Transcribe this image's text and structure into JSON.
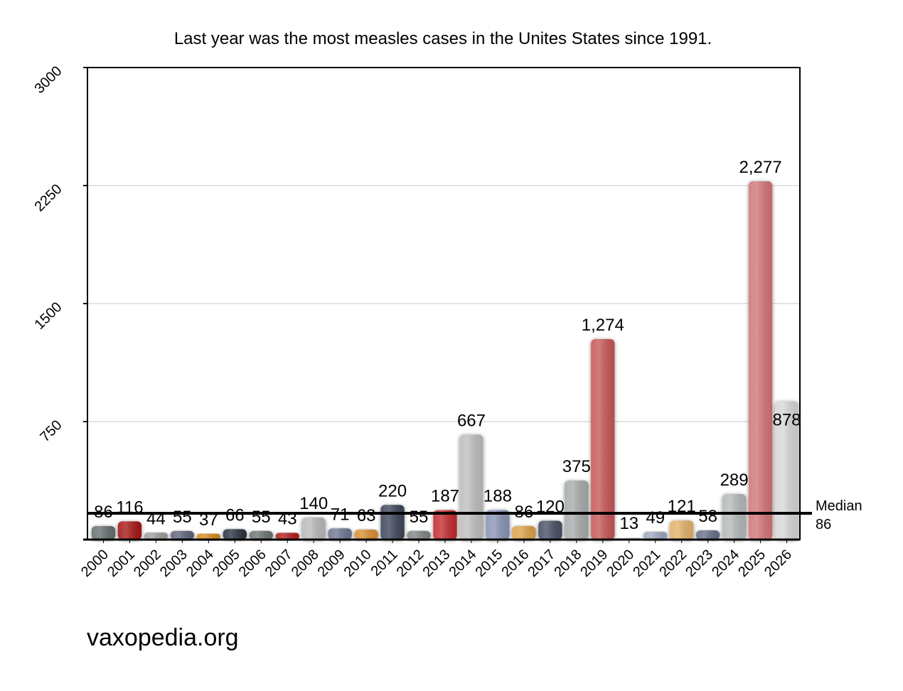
{
  "chart_data": {
    "type": "bar",
    "title": "Last year was the most measles cases in the Unites States since 1991.",
    "categories": [
      "2000",
      "2001",
      "2002",
      "2003",
      "2004",
      "2005",
      "2006",
      "2007",
      "2008",
      "2009",
      "2010",
      "2011",
      "2012",
      "2013",
      "2014",
      "2015",
      "2016",
      "2017",
      "2018",
      "2019",
      "2020",
      "2021",
      "2022",
      "2023",
      "2024",
      "2025",
      "2026"
    ],
    "values": [
      86,
      116,
      44,
      55,
      37,
      66,
      55,
      43,
      140,
      71,
      63,
      220,
      55,
      187,
      667,
      188,
      86,
      120,
      375,
      1274,
      13,
      49,
      121,
      58,
      289,
      2277,
      878
    ],
    "value_labels": [
      "86",
      "116",
      "44",
      "55",
      "37",
      "66",
      "55",
      "43",
      "140",
      "71",
      "63",
      "220",
      "55",
      "187",
      "667",
      "188",
      "86",
      "120",
      "375",
      "1,274",
      "13",
      "49",
      "121",
      "58",
      "289",
      "2,277",
      "878"
    ],
    "bar_colors": [
      "#666e6e",
      "#a51213",
      "#9d9d9d",
      "#5d6478",
      "#d58a1c",
      "#2b3141",
      "#6a7270",
      "#b31b1b",
      "#b9b9b9",
      "#6d7690",
      "#d88e2e",
      "#3c4558",
      "#7e8584",
      "#c22a2e",
      "#bdbdbd",
      "#8794b4",
      "#dba24a",
      "#474f64",
      "#a7abaa",
      "#c75757",
      "#e5e5e5",
      "#9ea6bc",
      "#e2b167",
      "#666e86",
      "#b4b9b8",
      "#d27474",
      "#d6d6d6"
    ],
    "xlabel": "",
    "ylabel": "",
    "ylim": [
      0,
      3000
    ],
    "yticks": [
      "0",
      "750",
      "1500",
      "2250",
      "3000"
    ],
    "grid": true,
    "median": {
      "value": 86,
      "label": "Median",
      "value_label": "86"
    }
  },
  "watermark": "vaxopedia.org"
}
